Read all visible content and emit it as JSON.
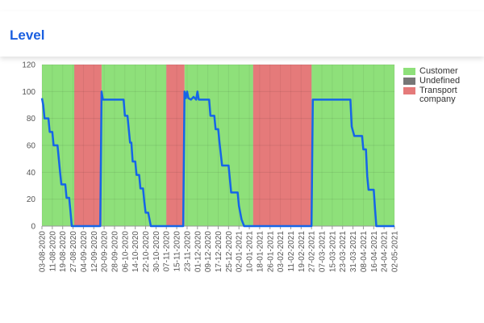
{
  "header": {
    "title": "Level"
  },
  "chart_data": {
    "type": "line",
    "ylim": [
      0,
      120
    ],
    "yticks": [
      0,
      20,
      40,
      60,
      80,
      100,
      120
    ],
    "xlim": [
      "03-08-2020",
      "02-05-2021"
    ],
    "xticks": [
      "03-08-2020",
      "11-08-2020",
      "19-08-2020",
      "27-08-2020",
      "04-09-2020",
      "12-09-2020",
      "20-09-2020",
      "28-09-2020",
      "06-10-2020",
      "14-10-2020",
      "22-10-2020",
      "30-10-2020",
      "07-11-2020",
      "15-11-2020",
      "23-11-2020",
      "01-12-2020",
      "09-12-2020",
      "17-12-2020",
      "25-12-2020",
      "02-01-2021",
      "10-01-2021",
      "18-01-2021",
      "26-01-2021",
      "03-02-2021",
      "11-02-2021",
      "19-02-2021",
      "27-02-2021",
      "07-03-2021",
      "15-03-2021",
      "23-03-2021",
      "31-03-2021",
      "08-04-2021",
      "16-04-2021",
      "24-04-2021",
      "02-05-2021"
    ],
    "grid": true,
    "bands": [
      {
        "name": "Customer",
        "color": "#8ee07a",
        "ranges": [
          [
            "03-08-2020",
            "28-08-2020"
          ],
          [
            "18-09-2020",
            "07-11-2020"
          ],
          [
            "21-11-2020",
            "13-01-2021"
          ],
          [
            "27-02-2021",
            "02-05-2021"
          ]
        ]
      },
      {
        "name": "Undefined",
        "color": "#777777",
        "ranges": [
          [
            "28-08-2020",
            "28-08-2020"
          ],
          [
            "13-01-2021",
            "13-01-2021"
          ]
        ]
      },
      {
        "name": "Transport company",
        "color": "#e57a7a",
        "ranges": [
          [
            "28-08-2020",
            "18-09-2020"
          ],
          [
            "07-11-2020",
            "21-11-2020"
          ],
          [
            "13-01-2021",
            "27-02-2021"
          ]
        ]
      }
    ],
    "line": {
      "color": "#1565e8",
      "x": [
        "03-08-2020",
        "04-08-2020",
        "05-08-2020",
        "08-08-2020",
        "09-08-2020",
        "11-08-2020",
        "12-08-2020",
        "15-08-2020",
        "16-08-2020",
        "17-08-2020",
        "18-08-2020",
        "21-08-2020",
        "22-08-2020",
        "24-08-2020",
        "25-08-2020",
        "26-08-2020",
        "17-09-2020",
        "18-09-2020",
        "19-09-2020",
        "05-10-2020",
        "06-10-2020",
        "08-10-2020",
        "09-10-2020",
        "10-10-2020",
        "11-10-2020",
        "12-10-2020",
        "14-10-2020",
        "15-10-2020",
        "17-10-2020",
        "18-10-2020",
        "20-10-2020",
        "21-10-2020",
        "22-10-2020",
        "24-10-2020",
        "25-10-2020",
        "26-10-2020",
        "20-11-2020",
        "21-11-2020",
        "22-11-2020",
        "23-11-2020",
        "24-11-2020",
        "26-11-2020",
        "28-11-2020",
        "30-11-2020",
        "01-12-2020",
        "02-12-2020",
        "10-12-2020",
        "11-12-2020",
        "14-12-2020",
        "15-12-2020",
        "17-12-2020",
        "18-12-2020",
        "20-12-2020",
        "25-12-2020",
        "26-12-2020",
        "27-12-2020",
        "01-01-2021",
        "02-01-2021",
        "04-01-2021",
        "06-01-2021",
        "27-02-2021",
        "28-02-2021",
        "29-03-2021",
        "30-03-2021",
        "01-04-2021",
        "07-04-2021",
        "08-04-2021",
        "10-04-2021",
        "11-04-2021",
        "12-04-2021",
        "16-04-2021",
        "17-04-2021",
        "18-04-2021",
        "02-05-2021"
      ],
      "values": [
        95,
        90,
        80,
        80,
        70,
        70,
        60,
        60,
        50,
        40,
        31,
        31,
        21,
        21,
        11,
        0,
        0,
        100,
        94,
        94,
        82,
        82,
        72,
        62,
        62,
        48,
        48,
        38,
        38,
        28,
        28,
        18,
        10,
        10,
        5,
        0,
        0,
        100,
        95,
        100,
        95,
        94,
        96,
        94,
        100,
        94,
        94,
        82,
        82,
        72,
        72,
        62,
        45,
        45,
        35,
        25,
        25,
        15,
        5,
        0,
        0,
        94,
        94,
        74,
        67,
        67,
        57,
        57,
        37,
        27,
        27,
        13,
        0,
        0
      ]
    }
  }
}
